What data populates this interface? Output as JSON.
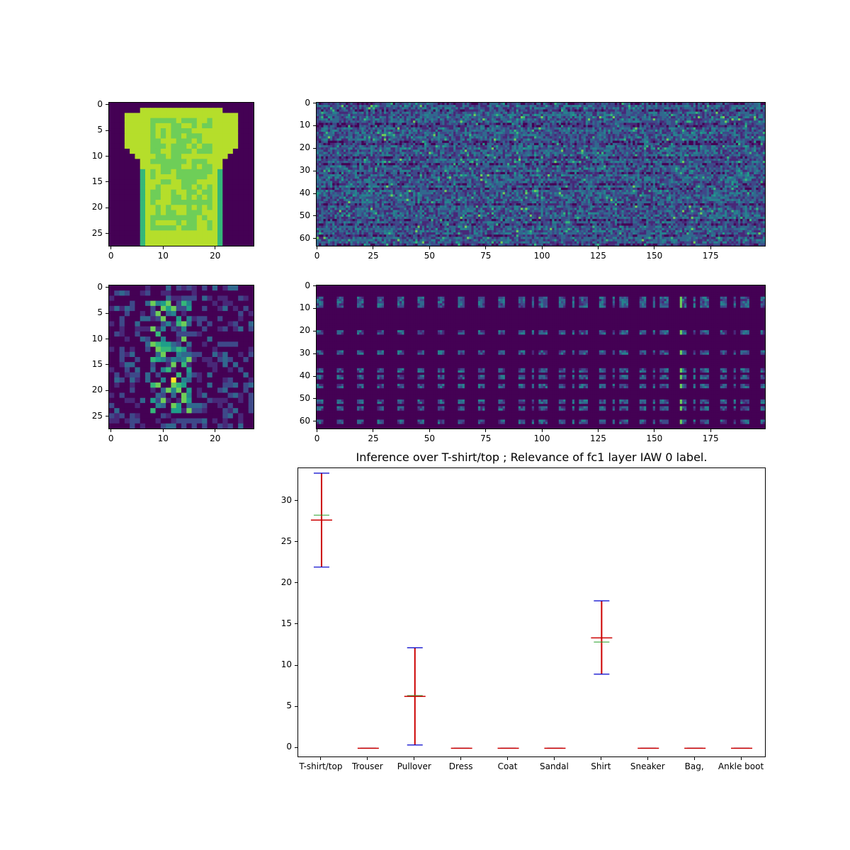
{
  "chart_data": [
    {
      "type": "heatmap",
      "description_key": "input-image",
      "rows": 28,
      "cols": 28,
      "xticks": [
        "0",
        "10",
        "20"
      ],
      "yticks": [
        "0",
        "5",
        "10",
        "15",
        "20",
        "25"
      ],
      "colormap": "viridis",
      "xlim": [
        -0.5,
        27.5
      ],
      "ylim": [
        27.5,
        -0.5
      ]
    },
    {
      "type": "heatmap",
      "description_key": "fc1-weights-top",
      "rows": 64,
      "cols": 200,
      "xticks": [
        "0",
        "25",
        "50",
        "75",
        "100",
        "125",
        "150",
        "175"
      ],
      "yticks": [
        "0",
        "10",
        "20",
        "30",
        "40",
        "50",
        "60"
      ],
      "colormap": "viridis",
      "xlim": [
        -0.5,
        199.5
      ],
      "ylim": [
        63.5,
        -0.5
      ]
    },
    {
      "type": "heatmap",
      "description_key": "relevance-image",
      "rows": 28,
      "cols": 28,
      "xticks": [
        "0",
        "10",
        "20"
      ],
      "yticks": [
        "0",
        "5",
        "10",
        "15",
        "20",
        "25"
      ],
      "colormap": "viridis",
      "xlim": [
        -0.5,
        27.5
      ],
      "ylim": [
        27.5,
        -0.5
      ]
    },
    {
      "type": "heatmap",
      "description_key": "fc1-relevance",
      "rows": 64,
      "cols": 200,
      "xticks": [
        "0",
        "25",
        "50",
        "75",
        "100",
        "125",
        "150",
        "175"
      ],
      "yticks": [
        "0",
        "10",
        "20",
        "30",
        "40",
        "50",
        "60"
      ],
      "colormap": "viridis",
      "xlim": [
        -0.5,
        199.5
      ],
      "ylim": [
        63.5,
        -0.5
      ]
    },
    {
      "type": "box",
      "title": "Inference over T-shirt/top ; Relevance of fc1 layer IAW 0 label.",
      "xlabel": "",
      "ylabel": "",
      "categories": [
        "T-shirt/top",
        "Trouser",
        "Pullover",
        "Dress",
        "Coat",
        "Sandal",
        "Shirt",
        "Sneaker",
        "Bag,",
        "Ankle boot"
      ],
      "ylim": [
        -1,
        34
      ],
      "yticks": [
        0,
        5,
        10,
        15,
        20,
        25,
        30
      ],
      "boxes": [
        {
          "min": 22.0,
          "max": 33.4,
          "mean": 27.7,
          "median": 28.3
        },
        {
          "min": 0.0,
          "max": 0.0,
          "mean": 0.0,
          "median": 0.0
        },
        {
          "min": 0.4,
          "max": 12.2,
          "mean": 6.3,
          "median": 6.4
        },
        {
          "min": 0.0,
          "max": 0.0,
          "mean": 0.0,
          "median": 0.0
        },
        {
          "min": 0.0,
          "max": 0.0,
          "mean": 0.0,
          "median": 0.0
        },
        {
          "min": 0.0,
          "max": 0.0,
          "mean": 0.0,
          "median": 0.0
        },
        {
          "min": 9.0,
          "max": 17.9,
          "mean": 13.4,
          "median": 12.9
        },
        {
          "min": 0.0,
          "max": 0.0,
          "mean": 0.0,
          "median": 0.0
        },
        {
          "min": 0.0,
          "max": 0.0,
          "mean": 0.0,
          "median": 0.0
        },
        {
          "min": 0.0,
          "max": 0.0,
          "mean": 0.0,
          "median": 0.0
        }
      ],
      "colors": {
        "whisker": "#0000cc",
        "mean": "#cc0000",
        "median": "#2ca02c",
        "line": "#cc0000"
      }
    }
  ]
}
